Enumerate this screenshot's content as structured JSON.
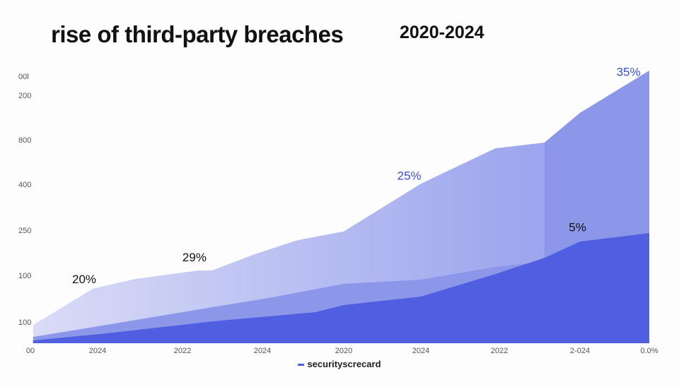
{
  "chart_data": {
    "type": "area",
    "title": "rise of third-party breaches",
    "subtitle": "2020-2024",
    "y_tick_labels": [
      "00l",
      "200",
      "800",
      "400",
      "250",
      "100",
      "100"
    ],
    "x_tick_labels": [
      "00",
      "2024",
      "2022",
      "2024",
      "2020",
      "2024",
      "2022",
      "2-024",
      "0.0%"
    ],
    "ylim": [
      0,
      100
    ],
    "xlim": [
      0,
      8
    ],
    "grid": false,
    "legend": {
      "placement": "bottom",
      "entries": [
        "securityscrecard"
      ]
    },
    "series": [
      {
        "color": "#c3c8f3",
        "points": [
          [
            0.04,
            6.7
          ],
          [
            0.93,
            20
          ],
          [
            1.45,
            23.6
          ],
          [
            2.2,
            26.7
          ],
          [
            2.37,
            26.7
          ],
          [
            2.9,
            32.6
          ],
          [
            3.43,
            37.8
          ],
          [
            4.0,
            41
          ],
          [
            5.0,
            58.5
          ],
          [
            5.95,
            71.5
          ],
          [
            6.56,
            73.6
          ],
          [
            7.0,
            84.5
          ],
          [
            8.0,
            100
          ]
        ]
      },
      {
        "color": "#8d97ea",
        "points": [
          [
            0.04,
            2.3
          ],
          [
            1.1,
            6.7
          ],
          [
            2.37,
            13.2
          ],
          [
            3.08,
            16.6
          ],
          [
            4.0,
            21.8
          ],
          [
            5.0,
            23.3
          ],
          [
            5.95,
            28
          ],
          [
            6.56,
            30
          ],
          [
            6.56,
            73.6
          ],
          [
            7.0,
            84.5
          ],
          [
            8.0,
            100
          ]
        ]
      },
      {
        "color": "#4f5fe0",
        "points": [
          [
            0.04,
            1
          ],
          [
            1.1,
            3.6
          ],
          [
            2.37,
            8
          ],
          [
            3.65,
            11.4
          ],
          [
            4.0,
            14
          ],
          [
            5.0,
            17.1
          ],
          [
            5.95,
            25.4
          ],
          [
            6.56,
            31.3
          ],
          [
            7.0,
            37.3
          ],
          [
            8.0,
            40.4
          ]
        ]
      }
    ],
    "annotations": [
      {
        "text": "20%",
        "x": 0.8,
        "y": 22,
        "color": "#111111"
      },
      {
        "text": "29%",
        "x": 2.15,
        "y": 30,
        "color": "#111111"
      },
      {
        "text": "25%",
        "x": 4.85,
        "y": 60,
        "color": "#3a4fc8"
      },
      {
        "text": "5%",
        "x": 6.97,
        "y": 41,
        "color": "#111111"
      },
      {
        "text": "35%",
        "x": 7.7,
        "y": 98,
        "color": "#3a4fc8"
      }
    ]
  }
}
